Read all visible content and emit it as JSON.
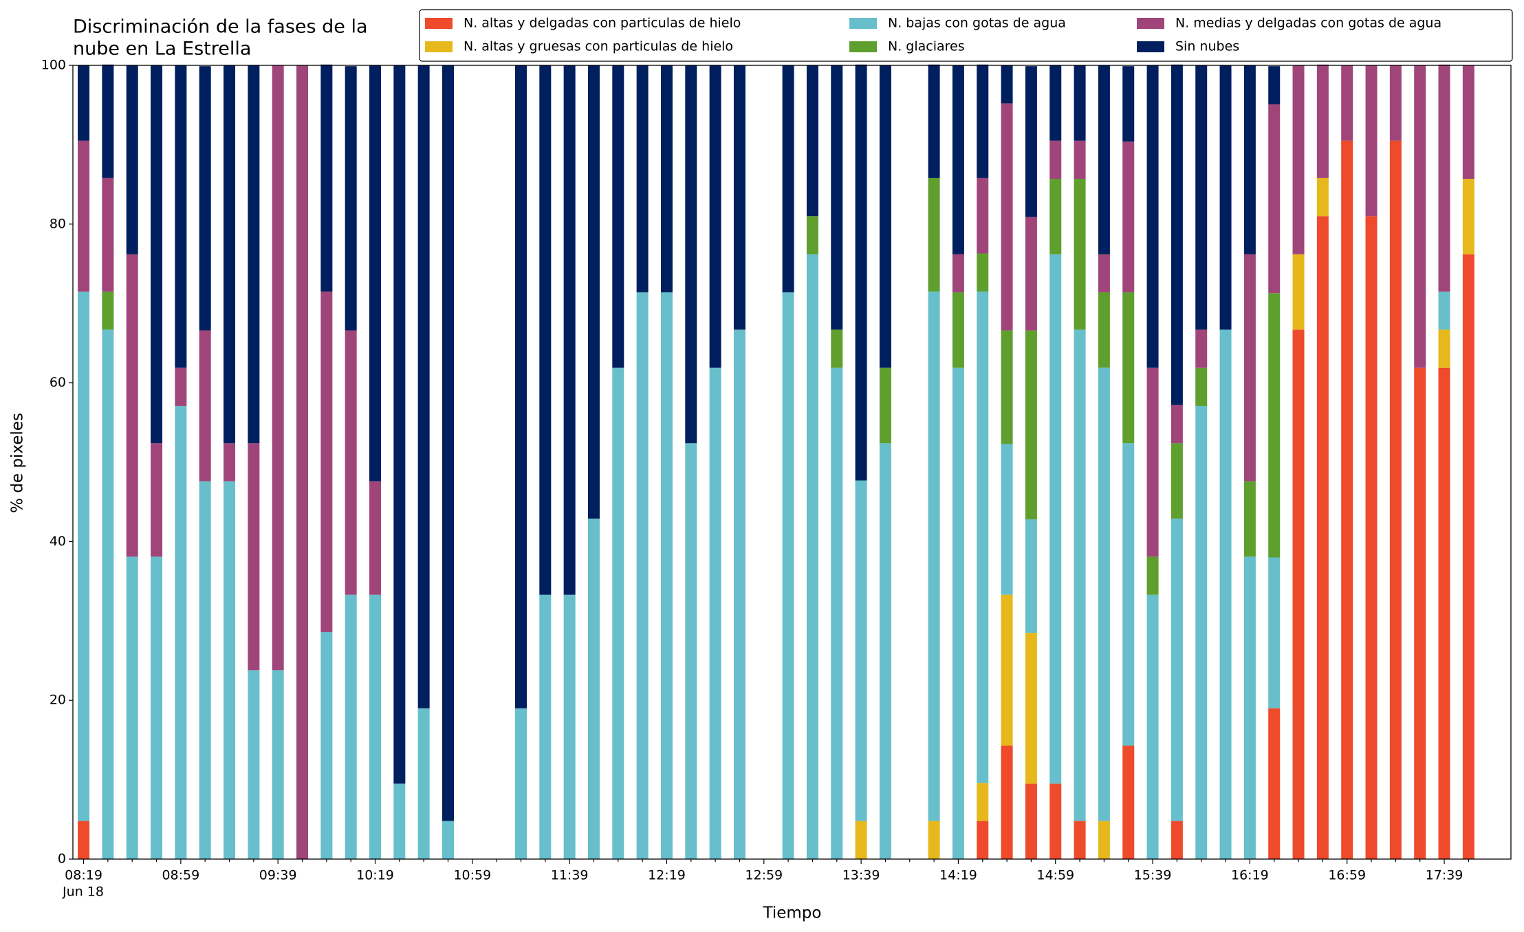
{
  "chart_data": {
    "type": "stacked_bar",
    "title": [
      "Discriminación de la fases de la",
      "nube en La Estrella"
    ],
    "xlabel": "Tiempo",
    "ylabel": "% de pixeles",
    "date_label": "Jun 18",
    "categories": [
      "08:19",
      null,
      null,
      null,
      "08:59",
      null,
      null,
      null,
      "09:39",
      null,
      null,
      null,
      "10:19",
      null,
      null,
      null,
      "10:59",
      null,
      null,
      null,
      "11:39",
      null,
      null,
      null,
      "12:19",
      null,
      null,
      null,
      "12:59",
      null,
      null,
      null,
      "13:39",
      null,
      null,
      null,
      "14:19",
      null,
      null,
      null,
      "14:59",
      null,
      null,
      null,
      "15:39",
      null,
      null,
      null,
      "16:19",
      null,
      null,
      null,
      "16:59",
      null,
      null,
      null,
      "17:39",
      null
    ],
    "ylim": [
      0,
      100
    ],
    "yticks": [
      0,
      20,
      40,
      60,
      80,
      100
    ],
    "series": [
      {
        "name": "N. altas y delgadas con particulas de hielo",
        "color": "#ee4a2b",
        "values": [
          4.8,
          0,
          0,
          0,
          0,
          0,
          0,
          0,
          0,
          0,
          0,
          0,
          0,
          0,
          0,
          0,
          0,
          0,
          0,
          0,
          0,
          0,
          0,
          0,
          0,
          0,
          0,
          0,
          0,
          0,
          0,
          0,
          0,
          0,
          0,
          0,
          0,
          4.8,
          14.3,
          9.5,
          9.5,
          4.8,
          0,
          14.3,
          0,
          4.8,
          0,
          0,
          0,
          19.0,
          66.7,
          81.0,
          90.5,
          81.0,
          90.5,
          61.9,
          61.9,
          76.2
        ]
      },
      {
        "name": "N. altas y gruesas con particulas de hielo",
        "color": "#e6b81c",
        "values": [
          0,
          0,
          0,
          0,
          0,
          0,
          0,
          0,
          0,
          0,
          0,
          0,
          0,
          0,
          0,
          0,
          0,
          0,
          0,
          0,
          0,
          0,
          0,
          0,
          0,
          0,
          0,
          0,
          0,
          0,
          0,
          0,
          4.8,
          0,
          0,
          4.8,
          0,
          4.8,
          19.0,
          19.0,
          0,
          0,
          4.8,
          0,
          0,
          0,
          0,
          0,
          0,
          0,
          9.5,
          4.8,
          0,
          0,
          0,
          0,
          4.8,
          9.5
        ]
      },
      {
        "name": "N. bajas con gotas de agua",
        "color": "#67bfcb",
        "values": [
          66.7,
          66.7,
          38.1,
          38.1,
          57.1,
          47.6,
          47.6,
          23.8,
          23.8,
          0,
          28.6,
          33.3,
          33.3,
          9.5,
          19.0,
          4.8,
          0,
          0,
          19.0,
          33.3,
          33.3,
          42.9,
          61.9,
          71.4,
          71.4,
          52.4,
          61.9,
          66.7,
          0,
          71.4,
          76.2,
          61.9,
          42.9,
          52.4,
          0,
          66.7,
          61.9,
          61.9,
          19.0,
          14.3,
          66.7,
          61.9,
          57.1,
          38.1,
          33.3,
          38.1,
          57.1,
          66.7,
          38.1,
          19.0,
          0,
          0,
          0,
          0,
          0,
          0,
          4.8,
          0
        ]
      },
      {
        "name": "N. glaciares",
        "color": "#5e9f2e",
        "values": [
          0,
          4.8,
          0,
          0,
          0,
          0,
          0,
          0,
          0,
          0,
          0,
          0,
          0,
          0,
          0,
          0,
          0,
          0,
          0,
          0,
          0,
          0,
          0,
          0,
          0,
          0,
          0,
          0,
          0,
          0,
          4.8,
          4.8,
          0,
          9.5,
          0,
          14.3,
          9.5,
          4.8,
          14.3,
          23.8,
          9.5,
          19.0,
          9.5,
          19.0,
          4.8,
          9.5,
          4.8,
          0,
          9.5,
          33.3,
          0,
          0,
          0,
          0,
          0,
          0,
          0,
          0
        ]
      },
      {
        "name": "N. medias y delgadas con gotas de agua",
        "color": "#a0457a",
        "values": [
          19.0,
          14.3,
          38.1,
          14.3,
          4.8,
          19.0,
          4.8,
          28.6,
          76.2,
          100,
          42.9,
          33.3,
          14.3,
          0,
          0,
          0,
          0,
          0,
          0,
          0,
          0,
          0,
          0,
          0,
          0,
          0,
          0,
          0,
          0,
          0,
          0,
          0,
          0,
          0,
          0,
          0,
          4.8,
          9.5,
          28.6,
          14.3,
          4.8,
          4.8,
          4.8,
          19.0,
          23.8,
          4.8,
          4.8,
          0,
          28.6,
          23.8,
          23.8,
          14.3,
          9.5,
          19.0,
          9.5,
          38.1,
          28.6,
          14.3
        ]
      },
      {
        "name": "Sin nubes",
        "color": "#001f5f",
        "values": [
          9.5,
          14.3,
          23.8,
          47.6,
          38.1,
          33.3,
          47.6,
          47.6,
          0,
          0,
          28.6,
          33.3,
          52.4,
          90.5,
          81.0,
          95.2,
          0,
          0,
          81.0,
          66.7,
          66.7,
          57.1,
          38.1,
          28.6,
          28.6,
          47.6,
          38.1,
          33.3,
          0,
          28.6,
          19.0,
          33.3,
          52.4,
          38.1,
          0,
          14.3,
          23.8,
          14.3,
          4.8,
          19.0,
          9.5,
          9.5,
          23.8,
          9.5,
          38.1,
          42.9,
          33.3,
          33.3,
          23.8,
          4.8,
          0,
          0,
          0,
          0,
          0,
          0,
          0,
          0
        ]
      }
    ]
  }
}
